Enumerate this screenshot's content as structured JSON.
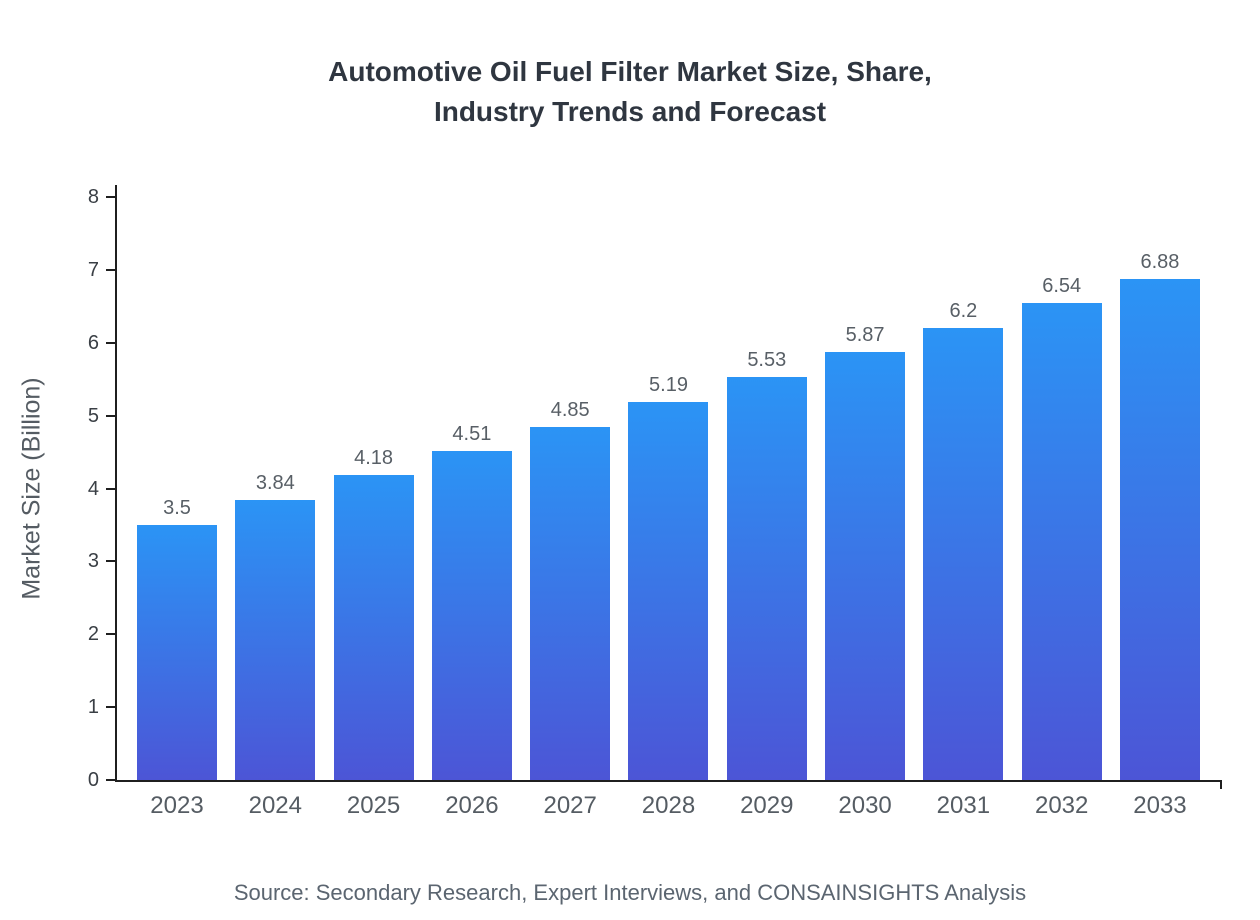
{
  "chart_data": {
    "type": "bar",
    "title": "Automotive Oil Fuel Filter Market Size, Share, Industry Trends and Forecast",
    "title_lines": [
      "Automotive Oil Fuel Filter Market Size, Share,",
      "Industry Trends and Forecast"
    ],
    "categories": [
      "2023",
      "2024",
      "2025",
      "2026",
      "2027",
      "2028",
      "2029",
      "2030",
      "2031",
      "2032",
      "2033"
    ],
    "values": [
      3.5,
      3.84,
      4.18,
      4.51,
      4.85,
      5.19,
      5.53,
      5.87,
      6.2,
      6.54,
      6.88
    ],
    "value_labels": [
      "3.5",
      "3.84",
      "4.18",
      "4.51",
      "4.85",
      "5.19",
      "5.53",
      "5.87",
      "6.2",
      "6.54",
      "6.88"
    ],
    "xlabel": "",
    "ylabel": "Market Size (Billion)",
    "ylim": [
      0,
      8
    ],
    "y_ticks": [
      0,
      1,
      2,
      3,
      4,
      5,
      6,
      7,
      8
    ],
    "grid": false,
    "legend": "none",
    "source": "Source: Secondary Research, Expert Interviews, and CONSAINSIGHTS Analysis",
    "colors": {
      "bar_gradient_top": "#2b94f5",
      "bar_gradient_bottom": "#4c55d6",
      "axis": "#1f1f1f",
      "title_text": "#2f3640",
      "label_text": "#555c63"
    }
  }
}
